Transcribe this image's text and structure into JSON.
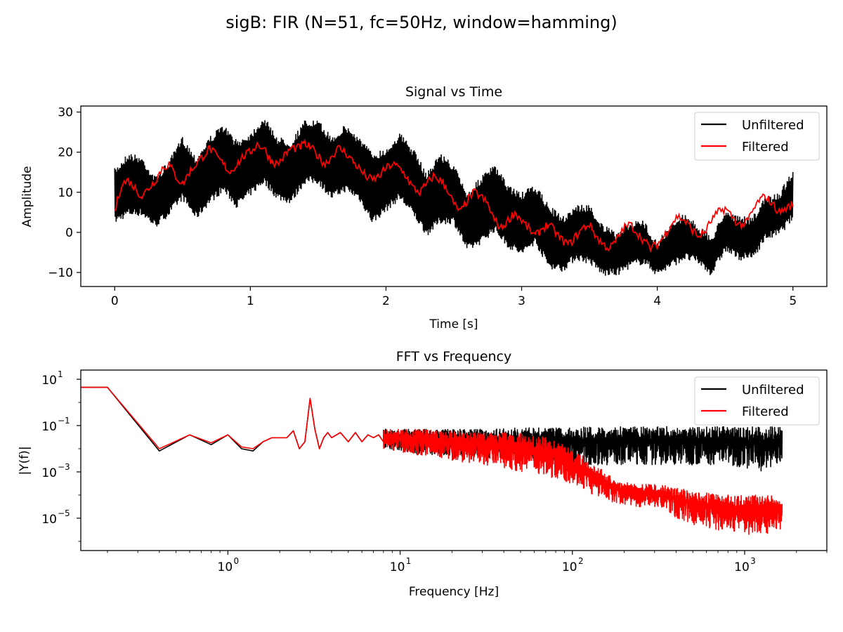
{
  "figure": {
    "suptitle": "sigB: FIR (N=51, fc=50Hz, window=hamming)"
  },
  "colors": {
    "unfiltered": "#000000",
    "filtered": "#ff0000"
  },
  "chart_data": [
    {
      "type": "line",
      "title": "Signal vs Time",
      "xlabel": "Time [s]",
      "ylabel": "Amplitude",
      "xlim": [
        -0.25,
        5.25
      ],
      "ylim": [
        -13.5,
        31.5
      ],
      "xticks": [
        0,
        1,
        2,
        3,
        4,
        5
      ],
      "xtick_labels": [
        "0",
        "1",
        "2",
        "3",
        "4",
        "5"
      ],
      "yticks": [
        -10,
        0,
        10,
        20,
        30
      ],
      "ytick_labels": [
        "−10",
        "0",
        "10",
        "20",
        "30"
      ],
      "legend": {
        "position": "top-right",
        "entries": [
          "Unfiltered",
          "Filtered"
        ]
      },
      "series": [
        {
          "name": "Unfiltered",
          "x": [
            0,
            0.1,
            0.2,
            0.3,
            0.4,
            0.5,
            0.6,
            0.7,
            0.8,
            0.9,
            1.0,
            1.1,
            1.2,
            1.3,
            1.4,
            1.5,
            1.6,
            1.7,
            1.8,
            1.9,
            2.0,
            2.1,
            2.2,
            2.3,
            2.4,
            2.5,
            2.6,
            2.7,
            2.8,
            2.9,
            3.0,
            3.1,
            3.2,
            3.3,
            3.4,
            3.5,
            3.6,
            3.7,
            3.8,
            3.9,
            4.0,
            4.1,
            4.2,
            4.3,
            4.4,
            4.5,
            4.6,
            4.7,
            4.8,
            4.9,
            5.0
          ],
          "upper": [
            16,
            20,
            19,
            14,
            18,
            24,
            19,
            24,
            27,
            23,
            25,
            29,
            24,
            23,
            28,
            28,
            24,
            27,
            24,
            20,
            21,
            25,
            21,
            15,
            20,
            17,
            10,
            14,
            17,
            12,
            10,
            12,
            7,
            4,
            7,
            7,
            2,
            0,
            3,
            3,
            -2,
            2,
            5,
            2,
            -1,
            6,
            4,
            4,
            9,
            10,
            16
          ],
          "lower": [
            2,
            4,
            4,
            1,
            4,
            8,
            3,
            7,
            10,
            6,
            9,
            12,
            8,
            7,
            12,
            12,
            8,
            10,
            8,
            2,
            5,
            8,
            4,
            -1,
            2,
            2,
            -5,
            -3,
            0,
            -4,
            -6,
            -3,
            -9,
            -10,
            -7,
            -8,
            -11,
            -11,
            -9,
            -8,
            -11,
            -9,
            -7,
            -8,
            -11,
            -5,
            -7,
            -7,
            -2,
            -1,
            3
          ]
        },
        {
          "name": "Filtered",
          "x": [
            0,
            0.05,
            0.1,
            0.15,
            0.2,
            0.25,
            0.3,
            0.35,
            0.4,
            0.45,
            0.5,
            0.55,
            0.6,
            0.65,
            0.7,
            0.75,
            0.8,
            0.85,
            0.9,
            0.95,
            1.0,
            1.05,
            1.1,
            1.15,
            1.2,
            1.25,
            1.3,
            1.35,
            1.4,
            1.45,
            1.5,
            1.55,
            1.6,
            1.65,
            1.7,
            1.75,
            1.8,
            1.85,
            1.9,
            1.95,
            2.0,
            2.05,
            2.1,
            2.15,
            2.2,
            2.25,
            2.3,
            2.35,
            2.4,
            2.45,
            2.5,
            2.55,
            2.6,
            2.65,
            2.7,
            2.75,
            2.8,
            2.85,
            2.9,
            2.95,
            3.0,
            3.05,
            3.1,
            3.15,
            3.2,
            3.25,
            3.3,
            3.35,
            3.4,
            3.45,
            3.5,
            3.55,
            3.6,
            3.65,
            3.7,
            3.75,
            3.8,
            3.85,
            3.9,
            3.95,
            4.0,
            4.05,
            4.1,
            4.15,
            4.2,
            4.25,
            4.3,
            4.35,
            4.4,
            4.45,
            4.5,
            4.55,
            4.6,
            4.65,
            4.7,
            4.75,
            4.8,
            4.85,
            4.9,
            4.95,
            5.0
          ],
          "y": [
            5,
            12,
            13,
            11,
            9,
            11,
            13,
            16,
            17,
            14,
            12,
            15,
            17,
            19,
            21,
            19,
            17,
            15,
            17,
            19,
            20,
            22,
            21,
            18,
            17,
            19,
            21,
            21,
            22,
            21,
            19,
            17,
            19,
            21,
            20,
            18,
            16,
            14,
            13,
            14,
            16,
            17,
            16,
            14,
            11,
            10,
            12,
            14,
            13,
            11,
            7,
            5,
            8,
            10,
            9,
            7,
            3,
            1,
            3,
            5,
            3,
            1,
            -1,
            1,
            2,
            0,
            -2,
            -3,
            -1,
            1,
            2,
            -1,
            -3,
            -4,
            -2,
            1,
            2,
            0,
            -2,
            -4,
            -3,
            -1,
            2,
            4,
            3,
            1,
            -1,
            0,
            3,
            5,
            6,
            4,
            2,
            2,
            5,
            8,
            9,
            7,
            5,
            6,
            7
          ]
        }
      ]
    },
    {
      "type": "line",
      "title": "FFT vs Frequency",
      "xlabel": "Frequency [Hz]",
      "ylabel": "|Y(f)|",
      "xscale": "log",
      "yscale": "log",
      "xlim": [
        0.14,
        3000
      ],
      "ylim": [
        4e-07,
        25
      ],
      "xticks": [
        1,
        10,
        100,
        1000
      ],
      "xtick_labels": [
        "10",
        "10",
        "10",
        "10"
      ],
      "xtick_exponents": [
        "0",
        "1",
        "2",
        "3"
      ],
      "yticks": [
        10,
        0.1,
        0.001,
        1e-05
      ],
      "ytick_labels": [
        "10",
        "10",
        "10",
        "10"
      ],
      "ytick_exponents": [
        "1",
        "−1",
        "−3",
        "−5"
      ],
      "legend": {
        "position": "top-right",
        "entries": [
          "Unfiltered",
          "Filtered"
        ]
      },
      "series": [
        {
          "name": "Unfiltered",
          "x": [
            0.14,
            0.2,
            0.4,
            0.6,
            0.8,
            1.0,
            1.2,
            1.4,
            1.6,
            1.8,
            2.0,
            2.2,
            2.4,
            2.6,
            2.8,
            3.0,
            3.2,
            3.4,
            3.6,
            3.8,
            4.0,
            4.5,
            5,
            5.5,
            6,
            6.5,
            7,
            7.5,
            8,
            9,
            10,
            12,
            14,
            16,
            18,
            20,
            25,
            30,
            40,
            50,
            60,
            80,
            100,
            130,
            170,
            220,
            300,
            400,
            500,
            700,
            1000,
            1300,
            1650
          ],
          "y": [
            4.5,
            4.5,
            0.008,
            0.04,
            0.015,
            0.04,
            0.01,
            0.008,
            0.02,
            0.03,
            0.03,
            0.03,
            0.06,
            0.01,
            0.02,
            1.5,
            0.07,
            0.01,
            0.03,
            0.05,
            0.03,
            0.05,
            0.02,
            0.05,
            0.02,
            0.04,
            0.03,
            0.04,
            0.02,
            0.03,
            0.03,
            0.03,
            0.03,
            0.035,
            0.03,
            0.03,
            0.035,
            0.03,
            0.03,
            0.04,
            0.035,
            0.03,
            0.03,
            0.035,
            0.03,
            0.03,
            0.035,
            0.03,
            0.03,
            0.03,
            0.035,
            0.03,
            0.03
          ],
          "band_x": [
            8,
            12,
            20,
            30,
            50,
            80,
            120,
            200,
            300,
            500,
            800,
            1200,
            1650
          ],
          "band_upper": [
            0.07,
            0.07,
            0.07,
            0.07,
            0.08,
            0.08,
            0.09,
            0.09,
            0.09,
            0.09,
            0.09,
            0.09,
            0.09
          ],
          "band_lower": [
            0.01,
            0.006,
            0.004,
            0.003,
            0.003,
            0.003,
            0.002,
            0.002,
            0.002,
            0.002,
            0.002,
            0.001,
            0.002
          ]
        },
        {
          "name": "Filtered",
          "x": [
            0.14,
            0.2,
            0.4,
            0.6,
            0.8,
            1.0,
            1.2,
            1.4,
            1.6,
            1.8,
            2.0,
            2.2,
            2.4,
            2.6,
            2.8,
            3.0,
            3.2,
            3.4,
            3.6,
            3.8,
            4.0,
            4.5,
            5,
            5.5,
            6,
            6.5,
            7,
            7.5,
            8,
            9,
            10,
            12,
            14,
            16,
            18,
            20,
            25,
            30,
            40,
            50,
            60,
            80,
            100,
            130,
            170,
            220,
            300,
            400,
            500,
            700,
            1000,
            1300,
            1650
          ],
          "y": [
            4.5,
            4.5,
            0.01,
            0.04,
            0.018,
            0.04,
            0.012,
            0.01,
            0.02,
            0.03,
            0.03,
            0.03,
            0.06,
            0.01,
            0.02,
            1.5,
            0.07,
            0.01,
            0.03,
            0.05,
            0.03,
            0.05,
            0.02,
            0.05,
            0.02,
            0.04,
            0.03,
            0.04,
            0.02,
            0.03,
            0.03,
            0.03,
            0.03,
            0.03,
            0.025,
            0.025,
            0.025,
            0.025,
            0.02,
            0.02,
            0.015,
            0.008,
            0.003,
            0.0008,
            0.0003,
            0.0002,
            0.00015,
            8e-05,
            4e-05,
            3e-05,
            2e-05,
            2e-05,
            2e-05
          ],
          "band_x": [
            8,
            12,
            20,
            30,
            50,
            80,
            100,
            130,
            170,
            220,
            300,
            400,
            500,
            700,
            1000,
            1300,
            1650
          ],
          "band_upper": [
            0.07,
            0.07,
            0.06,
            0.05,
            0.05,
            0.02,
            0.008,
            0.002,
            0.0005,
            0.0003,
            0.0003,
            0.0002,
            0.00015,
            0.0001,
            0.0001,
            0.0001,
            8e-05
          ],
          "band_lower": [
            0.01,
            0.005,
            0.003,
            0.002,
            0.001,
            0.0005,
            0.0003,
            0.0001,
            5e-05,
            3e-05,
            3e-05,
            1e-05,
            5e-06,
            3e-06,
            2e-06,
            2e-06,
            3e-06
          ]
        }
      ]
    }
  ]
}
